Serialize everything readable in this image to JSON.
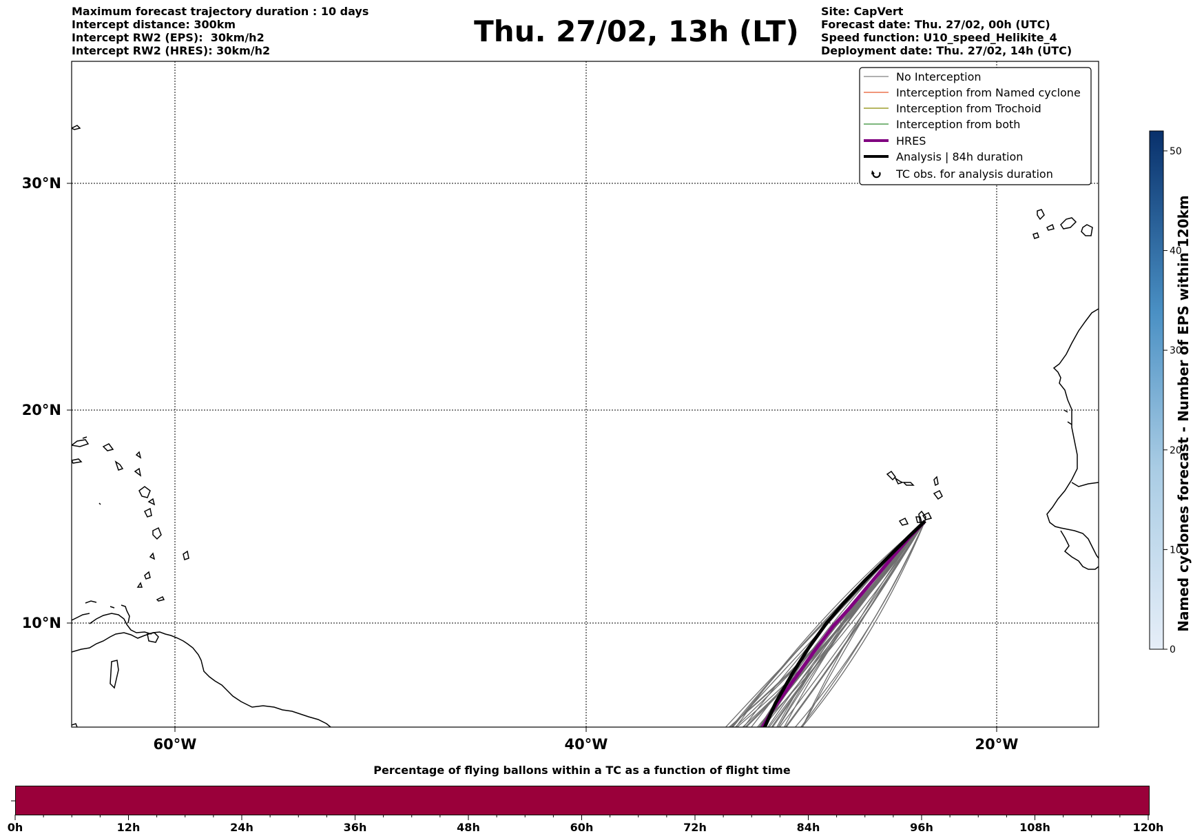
{
  "header": {
    "left_lines": [
      "Maximum forecast trajectory duration : 10 days",
      "Intercept distance: 300km",
      "Intercept RW2 (EPS):  30km/h2",
      "Intercept RW2 (HRES): 30km/h2"
    ],
    "title": "Thu. 27/02, 13h (LT)",
    "right_lines": [
      "Site: CapVert",
      "Forecast date: Thu. 27/02, 00h (UTC)",
      "Speed function: U10_speed_Helikite_4",
      "Deployment date: Thu. 27/02, 14h (UTC)"
    ]
  },
  "map": {
    "lon_ticks": [
      "60°W",
      "40°W",
      "20°W"
    ],
    "lat_ticks": [
      "30°N",
      "20°N",
      "10°N"
    ],
    "extent": {
      "lon": [
        -65,
        -15
      ],
      "lat": [
        5.4,
        34.7
      ]
    },
    "gridlines": true
  },
  "legend": {
    "items": [
      {
        "label": "No Interception",
        "color": "#808080",
        "style": "thin-line"
      },
      {
        "label": "Interception from Named cyclone",
        "color": "#e8572a",
        "style": "thin-line"
      },
      {
        "label": "Interception from Trochoid",
        "color": "#8a8a00",
        "style": "thin-line"
      },
      {
        "label": "Interception from both",
        "color": "#2e8b2e",
        "style": "thin-line"
      },
      {
        "label": "HRES",
        "color": "#800080",
        "style": "thick-line"
      },
      {
        "label": "Analysis | 84h duration",
        "color": "#000000",
        "style": "thick-line"
      },
      {
        "label": "TC obs. for analysis duration",
        "color": "#000000",
        "style": "cyclone-icon"
      }
    ]
  },
  "colorbar": {
    "label": "Named cyclones forecast - Number of EPS within 120km",
    "ticks": [
      "0",
      "10",
      "20",
      "30",
      "40",
      "50"
    ],
    "range": [
      0,
      52
    ],
    "color_low": "#e6eef8",
    "color_high": "#08306b"
  },
  "bottom": {
    "title": "Percentage of flying ballons within a TC as a function of flight time",
    "ticks": [
      "0h",
      "12h",
      "24h",
      "36h",
      "48h",
      "60h",
      "72h",
      "84h",
      "96h",
      "108h",
      "120h"
    ],
    "bar_color": "#9a003a"
  }
}
